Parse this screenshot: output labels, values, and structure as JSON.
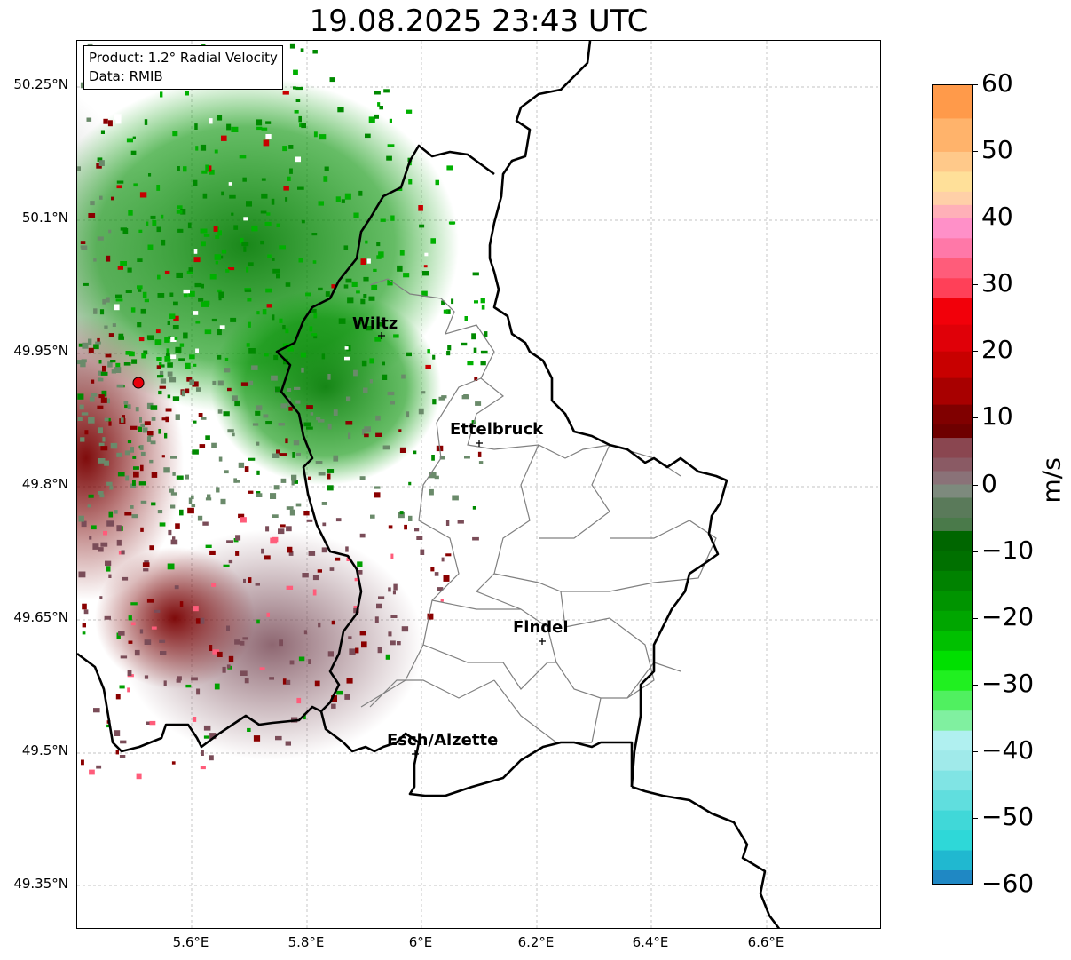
{
  "title": "19.08.2025 23:43 UTC",
  "info": {
    "product": "Product: 1.2° Radial Velocity",
    "data_source": "Data: RMIB"
  },
  "lat_ticks": [
    "50.25°N",
    "50.1°N",
    "49.95°N",
    "49.8°N",
    "49.65°N",
    "49.5°N",
    "49.35°N"
  ],
  "lon_ticks": [
    "5.6°E",
    "5.8°E",
    "6°E",
    "6.2°E",
    "6.4°E",
    "6.6°E"
  ],
  "cities": [
    {
      "name": "Wiltz"
    },
    {
      "name": "Ettelbruck"
    },
    {
      "name": "Findel"
    },
    {
      "name": "Esch/Alzette"
    }
  ],
  "colorbar": {
    "label": "m/s",
    "ticks": [
      "60",
      "50",
      "40",
      "30",
      "20",
      "10",
      "0",
      "−10",
      "−20",
      "−30",
      "−40",
      "−50",
      "−60"
    ],
    "range": [
      -60,
      60
    ],
    "colors": {
      "strong_away": "#f2000a",
      "moderate_away": "#800000",
      "near_zero": "#7d7d7d",
      "moderate_toward": "#006600",
      "strong_toward": "#00f000",
      "very_strong_toward": "#2ed8d8",
      "extreme_away": "#ffa050",
      "extreme_toward": "#1f78b4"
    }
  },
  "radar_site": {
    "color": "#e8000a"
  }
}
